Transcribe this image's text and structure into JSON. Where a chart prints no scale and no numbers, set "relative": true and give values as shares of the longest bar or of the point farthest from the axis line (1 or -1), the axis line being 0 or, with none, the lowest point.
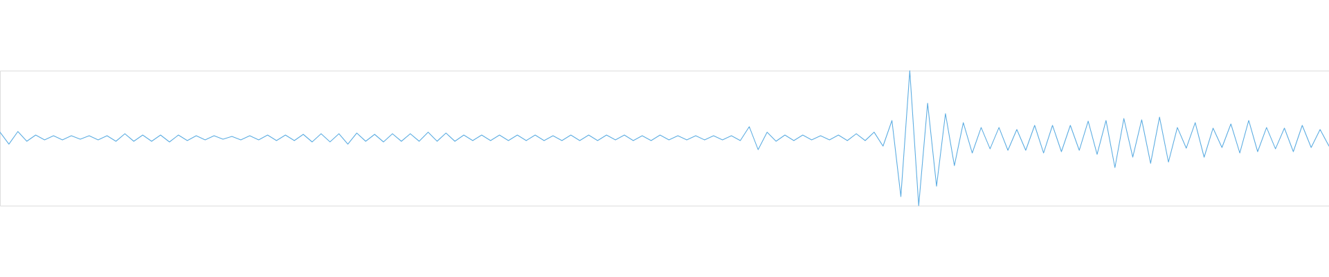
{
  "chart_data": {
    "type": "line",
    "relative": true,
    "categories": [
      null,
      null,
      null,
      null,
      null,
      null,
      null,
      null,
      null,
      null,
      null,
      null,
      null,
      null,
      null,
      null,
      null,
      null,
      null,
      null,
      null,
      null,
      null,
      null,
      null,
      null,
      null,
      null,
      null,
      null,
      null,
      null,
      null,
      null,
      null,
      null,
      null,
      null,
      null,
      null,
      null,
      null,
      null,
      null,
      null,
      null,
      null,
      null,
      null,
      null,
      null,
      null,
      null,
      null,
      null,
      null,
      null,
      null,
      null,
      null,
      null,
      null,
      null,
      null,
      null,
      null,
      null,
      null,
      null,
      null,
      null,
      null,
      null,
      null,
      null,
      null,
      null,
      null,
      null,
      null,
      null,
      null,
      null,
      null,
      null,
      null,
      null,
      null,
      null,
      null,
      null,
      null,
      null,
      null,
      null,
      null,
      null,
      null,
      null,
      null,
      null,
      null,
      null,
      null,
      null,
      null,
      null,
      null,
      null,
      null,
      null,
      null,
      null,
      null,
      null,
      null,
      null,
      null,
      null,
      null,
      null,
      null,
      null,
      null,
      null,
      null,
      null,
      null,
      null,
      null,
      null,
      null,
      null,
      null,
      null,
      null,
      null,
      null,
      null,
      null,
      null,
      null,
      null,
      null,
      null,
      null,
      null,
      null,
      null,
      null
    ],
    "series": [
      {
        "color": "#5dade2",
        "values": [
          0.544,
          0.456,
          0.549,
          0.477,
          0.523,
          0.487,
          0.518,
          0.487,
          0.518,
          0.492,
          0.518,
          0.487,
          0.518,
          0.477,
          0.533,
          0.477,
          0.523,
          0.477,
          0.523,
          0.472,
          0.523,
          0.482,
          0.518,
          0.487,
          0.518,
          0.492,
          0.513,
          0.487,
          0.518,
          0.487,
          0.523,
          0.482,
          0.523,
          0.482,
          0.528,
          0.472,
          0.533,
          0.472,
          0.533,
          0.456,
          0.538,
          0.477,
          0.528,
          0.472,
          0.533,
          0.477,
          0.533,
          0.477,
          0.544,
          0.477,
          0.538,
          0.477,
          0.523,
          0.482,
          0.523,
          0.482,
          0.523,
          0.482,
          0.523,
          0.482,
          0.523,
          0.482,
          0.518,
          0.482,
          0.523,
          0.482,
          0.523,
          0.482,
          0.523,
          0.487,
          0.523,
          0.482,
          0.518,
          0.482,
          0.523,
          0.487,
          0.518,
          0.487,
          0.518,
          0.487,
          0.518,
          0.487,
          0.518,
          0.482,
          0.585,
          0.415,
          0.544,
          0.477,
          0.523,
          0.482,
          0.523,
          0.487,
          0.518,
          0.487,
          0.523,
          0.482,
          0.533,
          0.482,
          0.544,
          0.441,
          0.631,
          0.067,
          1.0,
          0.0,
          0.759,
          0.144,
          0.682,
          0.297,
          0.615,
          0.39,
          0.579,
          0.421,
          0.579,
          0.41,
          0.564,
          0.41,
          0.595,
          0.39,
          0.595,
          0.4,
          0.595,
          0.41,
          0.626,
          0.38,
          0.631,
          0.282,
          0.646,
          0.359,
          0.636,
          0.313,
          0.656,
          0.323,
          0.579,
          0.426,
          0.615,
          0.359,
          0.574,
          0.431,
          0.605,
          0.39,
          0.631,
          0.4,
          0.579,
          0.421,
          0.574,
          0.4,
          0.595,
          0.431,
          0.564,
          0.441
        ]
      }
    ]
  }
}
